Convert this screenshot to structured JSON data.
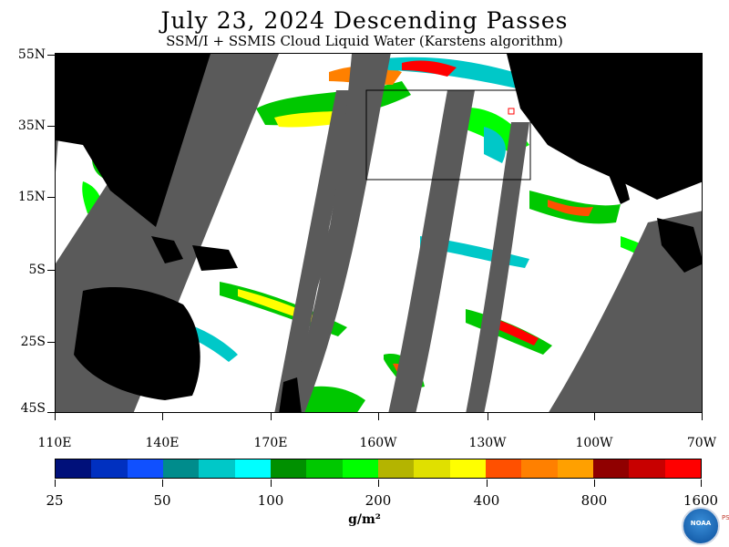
{
  "title": "July 23, 2024  Descending Passes",
  "subtitle": "SSM/I + SSMIS Cloud Liquid Water (Karstens algorithm)",
  "latitude_labels": [
    "55N",
    "35N",
    "15N",
    "5S",
    "25S",
    "45S"
  ],
  "longitude_labels": [
    "110E",
    "140E",
    "170E",
    "160W",
    "130W",
    "100W",
    "70W"
  ],
  "colorbar": {
    "labels": [
      "25",
      "50",
      "100",
      "200",
      "400",
      "800",
      "1600"
    ],
    "colors": [
      "#00107a",
      "#0030c0",
      "#1050ff",
      "#008c8c",
      "#00c8c8",
      "#00ffff",
      "#009000",
      "#00c800",
      "#00ff00",
      "#b4b400",
      "#e0e000",
      "#ffff00",
      "#ff5000",
      "#ff8000",
      "#ffa000",
      "#900000",
      "#c80000",
      "#ff0000"
    ],
    "units": "g/m²"
  },
  "map_colors": {
    "land": "#000000",
    "no_data_swath_gap": "#5a5a5a",
    "clear_ocean": "#ffffff"
  },
  "logo": {
    "text": "NOAA",
    "side_text": "PSL"
  }
}
